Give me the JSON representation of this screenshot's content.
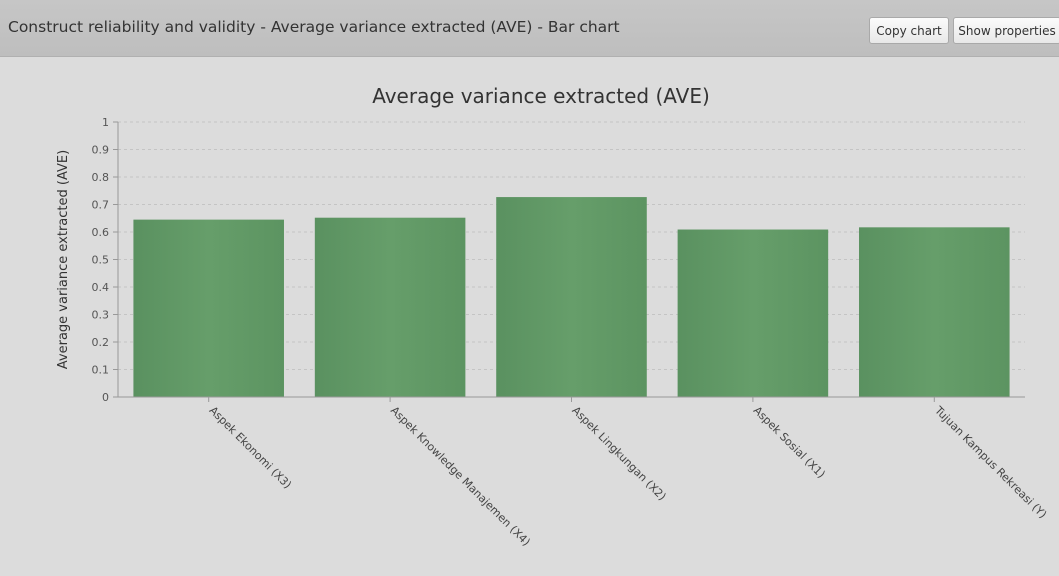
{
  "header": {
    "title": "Construct reliability and validity - Average variance extracted (AVE) - Bar chart",
    "copy_chart_label": "Copy chart",
    "show_properties_label": "Show properties"
  },
  "colors": {
    "bar": "#629a66",
    "background": "#dcdcdc",
    "header": "#c2c2c2"
  },
  "chart_data": {
    "type": "bar",
    "title": "Average variance extracted (AVE)",
    "xlabel": "",
    "ylabel": "Average variance extracted (AVE)",
    "ylim": [
      0,
      1
    ],
    "yticks": [
      "0",
      "0.1",
      "0.2",
      "0.3",
      "0.4",
      "0.5",
      "0.6",
      "0.7",
      "0.8",
      "0.9",
      "1"
    ],
    "grid": true,
    "categories": [
      "Aspek Ekonomi (X3)",
      "Aspek Knowledge Manajemen (X4)",
      "Aspek Lingkungan (X2)",
      "Aspek Sosial (X1)",
      "Tujuan Kampus Rekreasi (Y)"
    ],
    "values": [
      0.645,
      0.652,
      0.727,
      0.609,
      0.617
    ]
  }
}
